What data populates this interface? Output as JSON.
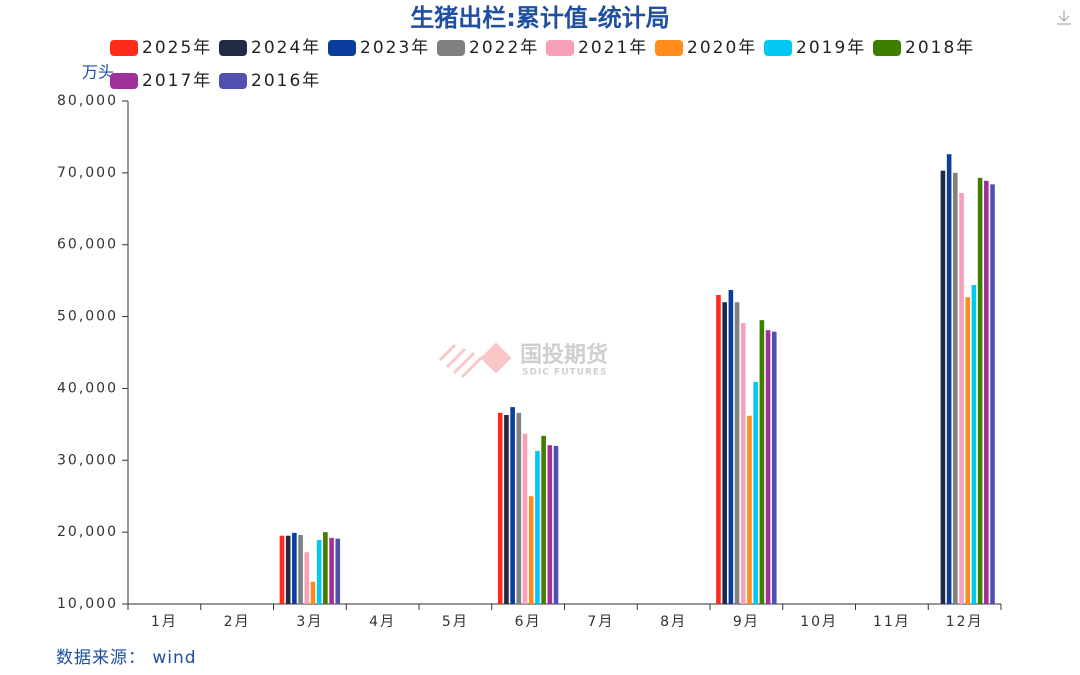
{
  "chart_data": {
    "type": "bar",
    "title": "生猪出栏:累计值-统计局",
    "y_unit": "万头",
    "source": "数据来源： wind",
    "watermark": {
      "name": "国投期货",
      "sub": "SDIC FUTURES"
    },
    "categories": [
      "1月",
      "2月",
      "3月",
      "4月",
      "5月",
      "6月",
      "7月",
      "8月",
      "9月",
      "10月",
      "11月",
      "12月"
    ],
    "series": [
      {
        "name": "2025年",
        "color": "#ff2a1a",
        "values": [
          null,
          null,
          19500,
          null,
          null,
          36600,
          null,
          null,
          53000,
          null,
          null,
          null
        ]
      },
      {
        "name": "2024年",
        "color": "#1f2a44",
        "values": [
          null,
          null,
          19500,
          null,
          null,
          36300,
          null,
          null,
          52000,
          null,
          null,
          70300
        ]
      },
      {
        "name": "2023年",
        "color": "#0a3d9c",
        "values": [
          null,
          null,
          19900,
          null,
          null,
          37400,
          null,
          null,
          53700,
          null,
          null,
          72600
        ]
      },
      {
        "name": "2022年",
        "color": "#808080",
        "values": [
          null,
          null,
          19600,
          null,
          null,
          36600,
          null,
          null,
          52000,
          null,
          null,
          70000
        ]
      },
      {
        "name": "2021年",
        "color": "#f7a0b8",
        "values": [
          null,
          null,
          17200,
          null,
          null,
          33700,
          null,
          null,
          49100,
          null,
          null,
          67200
        ]
      },
      {
        "name": "2020年",
        "color": "#ff8c1a",
        "values": [
          null,
          null,
          13100,
          null,
          null,
          25000,
          null,
          null,
          36200,
          null,
          null,
          52700
        ]
      },
      {
        "name": "2019年",
        "color": "#00c8f0",
        "values": [
          null,
          null,
          18900,
          null,
          null,
          31300,
          null,
          null,
          40900,
          null,
          null,
          54400
        ]
      },
      {
        "name": "2018年",
        "color": "#3f7f00",
        "values": [
          null,
          null,
          20000,
          null,
          null,
          33400,
          null,
          null,
          49500,
          null,
          null,
          69300
        ]
      },
      {
        "name": "2017年",
        "color": "#a0309a",
        "values": [
          null,
          null,
          19200,
          null,
          null,
          32100,
          null,
          null,
          48100,
          null,
          null,
          68900
        ]
      },
      {
        "name": "2016年",
        "color": "#5050b0",
        "values": [
          null,
          null,
          19100,
          null,
          null,
          32000,
          null,
          null,
          47900,
          null,
          null,
          68400
        ]
      }
    ],
    "ylim": [
      10000,
      80000
    ],
    "yticks": [
      {
        "value": 10000,
        "label": "10,000"
      },
      {
        "value": 20000,
        "label": "20,000"
      },
      {
        "value": 30000,
        "label": "30,000"
      },
      {
        "value": 40000,
        "label": "40,000"
      },
      {
        "value": 50000,
        "label": "50,000"
      },
      {
        "value": 60000,
        "label": "60,000"
      },
      {
        "value": 70000,
        "label": "70,000"
      },
      {
        "value": 80000,
        "label": "80,000"
      }
    ]
  }
}
